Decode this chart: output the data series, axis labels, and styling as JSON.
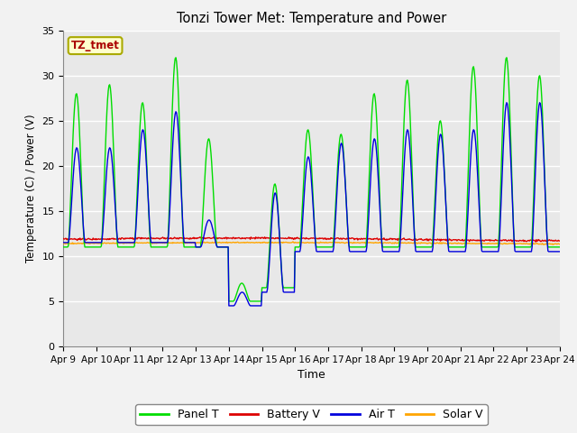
{
  "title": "Tonzi Tower Met: Temperature and Power",
  "xlabel": "Time",
  "ylabel": "Temperature (C) / Power (V)",
  "annotation": "TZ_tmet",
  "ylim": [
    0,
    35
  ],
  "yticks": [
    0,
    5,
    10,
    15,
    20,
    25,
    30,
    35
  ],
  "xtick_labels": [
    "Apr 9",
    "Apr 10",
    "Apr 11",
    "Apr 12",
    "Apr 13",
    "Apr 14",
    "Apr 15",
    "Apr 16",
    "Apr 17",
    "Apr 18",
    "Apr 19",
    "Apr 20",
    "Apr 21",
    "Apr 22",
    "Apr 23",
    "Apr 24"
  ],
  "color_panel": "#00DD00",
  "color_battery": "#DD0000",
  "color_air": "#0000DD",
  "color_solar": "#FFA500",
  "legend_labels": [
    "Panel T",
    "Battery V",
    "Air T",
    "Solar V"
  ],
  "bg_color": "#E8E8E8",
  "fig_bg": "#F2F2F2",
  "annotation_bg": "#FFFFCC",
  "annotation_fg": "#AA0000",
  "annotation_edge": "#AAAA00"
}
